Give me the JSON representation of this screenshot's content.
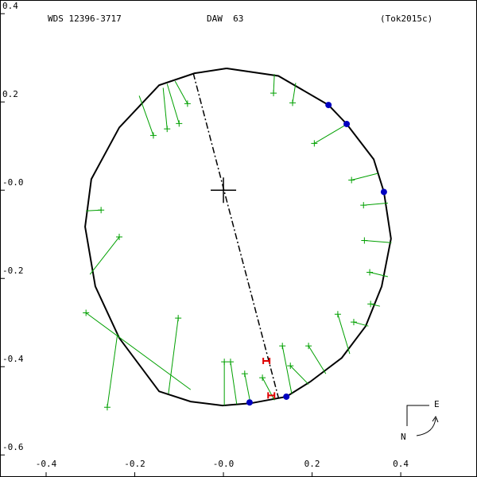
{
  "chart_data": {
    "type": "scatter",
    "title": "WDS 12396-3717",
    "subtitle": "DAW  63",
    "reference": "(Tok2015c)",
    "xlim": [
      -0.504,
      0.572
    ],
    "ylim": [
      -0.65,
      0.431
    ],
    "xticks": [
      -0.4,
      -0.2,
      {
        "value": 0,
        "label": "-0.0"
      },
      0.2,
      0.4
    ],
    "yticks": [
      0.4,
      0.2,
      {
        "value": 0,
        "label": "-0.0"
      },
      -0.2,
      -0.4,
      -0.6
    ],
    "orbit": {
      "color": "#000000",
      "x": [
        0.007,
        0.124,
        0.237,
        0.278,
        0.339,
        0.362,
        0.378,
        0.357,
        0.321,
        0.267,
        0.196,
        0.142,
        0.061,
        -0.002,
        -0.074,
        -0.145,
        -0.235,
        -0.289,
        -0.312,
        -0.298,
        -0.235,
        -0.145,
        -0.065,
        0.007
      ],
      "y": [
        0.276,
        0.259,
        0.193,
        0.15,
        0.07,
        -0.004,
        -0.11,
        -0.218,
        -0.308,
        -0.38,
        -0.434,
        -0.468,
        -0.483,
        -0.488,
        -0.479,
        -0.456,
        -0.335,
        -0.218,
        -0.083,
        0.025,
        0.142,
        0.238,
        0.265,
        0.276
      ]
    },
    "observations": {
      "color": "#00a000",
      "x": [
        0.113,
        0.156,
        0.205,
        0.289,
        0.316,
        0.318,
        0.33,
        0.332,
        0.294,
        0.258,
        0.192,
        0.151,
        0.133,
        0.088,
        0.048,
        0.016,
        0.002,
        -0.102,
        -0.31,
        -0.262,
        -0.235,
        -0.276,
        -0.158,
        -0.127,
        -0.1,
        -0.081
      ],
      "y": [
        0.22,
        0.198,
        0.106,
        0.023,
        -0.034,
        -0.114,
        -0.186,
        -0.258,
        -0.299,
        -0.281,
        -0.353,
        -0.398,
        -0.353,
        -0.425,
        -0.416,
        -0.389,
        -0.389,
        -0.29,
        -0.278,
        -0.492,
        -0.106,
        -0.045,
        0.124,
        0.139,
        0.151,
        0.196
      ],
      "pred_x": [
        0.115,
        0.163,
        0.276,
        0.348,
        0.371,
        0.379,
        0.371,
        0.353,
        0.327,
        0.285,
        0.231,
        0.192,
        0.154,
        0.115,
        0.061,
        0.03,
        0.002,
        -0.124,
        -0.074,
        -0.239,
        -0.301,
        -0.31,
        -0.19,
        -0.136,
        -0.127,
        -0.109
      ],
      "pred_y": [
        0.263,
        0.243,
        0.148,
        0.038,
        -0.029,
        -0.119,
        -0.196,
        -0.263,
        -0.308,
        -0.371,
        -0.416,
        -0.44,
        -0.461,
        -0.476,
        -0.483,
        -0.485,
        -0.488,
        -0.461,
        -0.452,
        -0.326,
        -0.191,
        -0.047,
        0.214,
        0.232,
        0.241,
        0.247
      ]
    },
    "ephemeris": {
      "color": "#0000c0",
      "x": [
        0.237,
        0.278,
        0.362,
        0.059,
        0.142
      ],
      "y": [
        0.193,
        0.15,
        -0.004,
        -0.481,
        -0.468
      ]
    },
    "speckle": {
      "color": "#e00000",
      "x": [
        0.097,
        0.108
      ],
      "y": [
        -0.387,
        -0.465
      ]
    },
    "node_line": {
      "x": [
        -0.068,
        0.124
      ],
      "y": [
        0.265,
        -0.47
      ]
    },
    "center": {
      "x": 0,
      "y": 0
    },
    "compass": {
      "east": "E",
      "north": "N"
    }
  }
}
